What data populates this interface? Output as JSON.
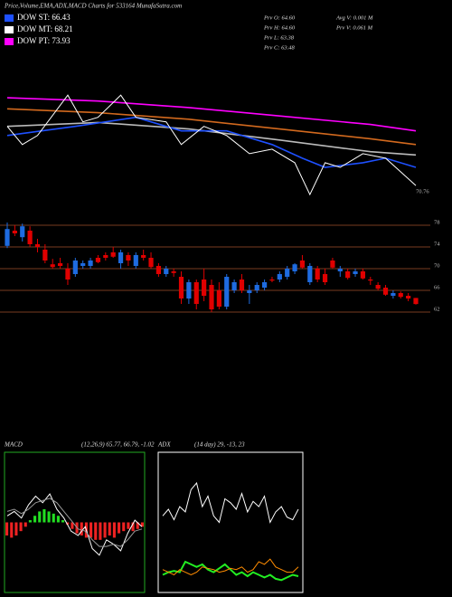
{
  "header": {
    "title": "Price,Volume,EMA,ADX,MACD Charts for 533164 MunafaSutra.com"
  },
  "legend": [
    {
      "label": "DOW ST: 66.43",
      "color": "#1e50ff"
    },
    {
      "label": "DOW MT: 68.21",
      "color": "#ffffff"
    },
    {
      "label": "DOW PT: 73.93",
      "color": "#ff00ff"
    }
  ],
  "info": [
    "Prv O: 64.60",
    "Avg V: 0.001 M",
    "Prv H: 64.60",
    "Prv V: 0.061 M",
    "Prv L: 63.38",
    "Prv C: 63.48"
  ],
  "chart_data": [
    {
      "type": "line",
      "price_label": "70.76",
      "xlim": [
        0,
        54
      ],
      "ylim": [
        60,
        82
      ],
      "series": [
        {
          "color": "#ff00ff",
          "x": [
            0,
            12,
            24,
            36,
            48,
            54
          ],
          "values": [
            75.3,
            74.8,
            73.8,
            72.5,
            71.2,
            70.2
          ]
        },
        {
          "color": "#d2691e",
          "x": [
            0,
            12,
            24,
            36,
            48,
            54
          ],
          "values": [
            73.6,
            73.0,
            72.0,
            70.5,
            69.0,
            68.1
          ]
        },
        {
          "color": "#bbbbbb",
          "x": [
            0,
            12,
            24,
            36,
            48,
            54
          ],
          "values": [
            70.9,
            71.5,
            70.5,
            68.8,
            67.0,
            66.5
          ]
        },
        {
          "color": "#1e50ff",
          "x": [
            0,
            9,
            17,
            23,
            29,
            35,
            39,
            42,
            47,
            50,
            54
          ],
          "values": [
            69.5,
            70.9,
            72.3,
            70.2,
            70.2,
            68.1,
            66.0,
            64.6,
            65.3,
            66.0,
            64.6
          ]
        },
        {
          "color": "#ffffff",
          "x": [
            0,
            2,
            4,
            8,
            10,
            12,
            15,
            17,
            21,
            23,
            26,
            29,
            32,
            35,
            38,
            40,
            42,
            44,
            47,
            50,
            54
          ],
          "values": [
            70.9,
            68.1,
            69.5,
            75.7,
            71.6,
            72.3,
            75.7,
            72.3,
            71.6,
            68.1,
            70.9,
            69.5,
            66.7,
            67.4,
            65.3,
            60.4,
            65.3,
            64.6,
            66.7,
            66.0,
            61.8
          ]
        }
      ]
    },
    {
      "type": "candlestick",
      "up_color": "#1e6be0",
      "down_color": "#e00000",
      "ylim": [
        60,
        82
      ],
      "yticks": [
        62,
        66,
        70,
        74,
        78
      ],
      "grid": true,
      "open": [
        74.2,
        77.0,
        75.8,
        77.0,
        74.5,
        73.5,
        70.8,
        71.0,
        70.0,
        69.0,
        70.5,
        70.5,
        72.0,
        72.5,
        73.0,
        71.0,
        72.5,
        70.5,
        72.5,
        72.0,
        70.5,
        69.0,
        69.5,
        68.5,
        64.5,
        67.5,
        68.0,
        67.0,
        66.0,
        63.0,
        66.0,
        68.0,
        65.5,
        66.0,
        66.5,
        68.0,
        68.0,
        68.5,
        69.5,
        71.5,
        67.5,
        70.0,
        69.0,
        71.5,
        69.5,
        69.5,
        69.0,
        69.5,
        68.0,
        67.0,
        66.5,
        65.0,
        65.5,
        65.0,
        64.6
      ],
      "high": [
        78.5,
        78.0,
        78.3,
        77.8,
        75.5,
        74.5,
        71.8,
        72.0,
        71.0,
        72.0,
        71.5,
        72.0,
        72.5,
        73.0,
        74.0,
        73.5,
        73.0,
        73.0,
        73.5,
        73.0,
        71.0,
        70.5,
        70.0,
        69.5,
        68.0,
        68.0,
        70.0,
        68.0,
        67.5,
        69.0,
        68.0,
        69.0,
        67.0,
        67.5,
        68.0,
        68.5,
        69.5,
        70.5,
        71.0,
        72.5,
        71.0,
        70.5,
        70.0,
        72.0,
        70.5,
        70.0,
        70.0,
        70.0,
        68.5,
        67.5,
        67.0,
        66.0,
        65.8,
        65.5,
        64.6
      ],
      "low": [
        73.8,
        76.0,
        75.0,
        74.0,
        73.0,
        71.0,
        70.0,
        70.0,
        67.0,
        68.5,
        70.0,
        70.0,
        71.0,
        71.5,
        72.0,
        70.0,
        70.5,
        70.0,
        71.5,
        70.0,
        68.5,
        68.5,
        68.5,
        63.5,
        63.5,
        62.5,
        64.0,
        62.0,
        62.5,
        62.5,
        65.5,
        65.5,
        63.5,
        65.5,
        66.0,
        67.5,
        67.5,
        68.0,
        69.0,
        70.0,
        67.0,
        67.5,
        67.0,
        70.0,
        68.5,
        68.0,
        68.5,
        68.0,
        67.0,
        66.0,
        65.0,
        64.5,
        64.5,
        64.0,
        63.38
      ],
      "close": [
        77.3,
        76.5,
        77.8,
        74.5,
        74.0,
        71.5,
        70.3,
        70.5,
        68.0,
        71.5,
        71.0,
        71.5,
        71.2,
        72.0,
        72.2,
        73.0,
        71.5,
        72.5,
        72.0,
        70.3,
        69.0,
        70.0,
        69.2,
        64.5,
        67.5,
        63.5,
        65.0,
        62.5,
        63.0,
        68.5,
        67.5,
        66.0,
        66.0,
        67.0,
        67.5,
        67.8,
        69.0,
        70.0,
        70.8,
        70.2,
        70.5,
        68.0,
        67.5,
        70.2,
        70.0,
        68.3,
        69.5,
        68.2,
        67.8,
        66.3,
        65.2,
        65.5,
        64.8,
        64.5,
        63.48
      ]
    },
    {
      "type": "macd",
      "title": "MACD",
      "subtitle": "(12,26,9) 65.77, 66.79, -1.02",
      "ylim": [
        -3,
        3
      ],
      "histogram": [
        -0.6,
        -0.7,
        -0.6,
        -0.4,
        -0.2,
        0.1,
        0.3,
        0.5,
        0.6,
        0.5,
        0.4,
        0.3,
        0.1,
        -0.1,
        -0.3,
        -0.5,
        -0.6,
        -0.7,
        -0.7,
        -0.8,
        -0.8,
        -0.7,
        -0.6,
        -0.7,
        -0.5,
        -0.4,
        -0.3,
        -0.4,
        -0.3,
        -0.2
      ],
      "up_color": "#22dd22",
      "down_color": "#ee2222",
      "series": [
        {
          "color": "#ffffff",
          "values": [
            0.3,
            0.5,
            0.2,
            0.8,
            1.2,
            0.9,
            1.3,
            0.6,
            0.2,
            -0.4,
            -0.6,
            -0.2,
            -1.2,
            -1.5,
            -0.8,
            -1.0,
            -1.3,
            -0.5,
            0.1,
            -0.2
          ]
        },
        {
          "color": "#999999",
          "values": [
            0.5,
            0.6,
            0.4,
            0.6,
            0.9,
            1.0,
            1.1,
            0.9,
            0.5,
            0.1,
            -0.3,
            -0.4,
            -0.8,
            -1.1,
            -1.1,
            -1.0,
            -1.1,
            -0.8,
            -0.4,
            -0.3
          ]
        }
      ]
    },
    {
      "type": "adx",
      "title": "ADX",
      "subtitle": "(14 day) 29, -13, 23",
      "ylim": [
        0,
        100
      ],
      "series": [
        {
          "color": "#ffffff",
          "values": [
            55,
            60,
            52,
            62,
            58,
            75,
            80,
            62,
            70,
            55,
            50,
            68,
            65,
            60,
            72,
            58,
            66,
            62,
            70,
            50,
            58,
            62,
            54,
            52,
            60
          ]
        },
        {
          "color": "#22ee22",
          "values": [
            10,
            12,
            13,
            12,
            20,
            18,
            16,
            18,
            14,
            12,
            15,
            18,
            14,
            10,
            12,
            9,
            12,
            10,
            8,
            10,
            7,
            6,
            8,
            10,
            9
          ]
        },
        {
          "color": "#ff8c00",
          "values": [
            14,
            12,
            10,
            14,
            12,
            10,
            12,
            16,
            15,
            14,
            12,
            13,
            15,
            14,
            16,
            12,
            14,
            20,
            18,
            22,
            16,
            14,
            12,
            12,
            16
          ]
        }
      ]
    }
  ]
}
